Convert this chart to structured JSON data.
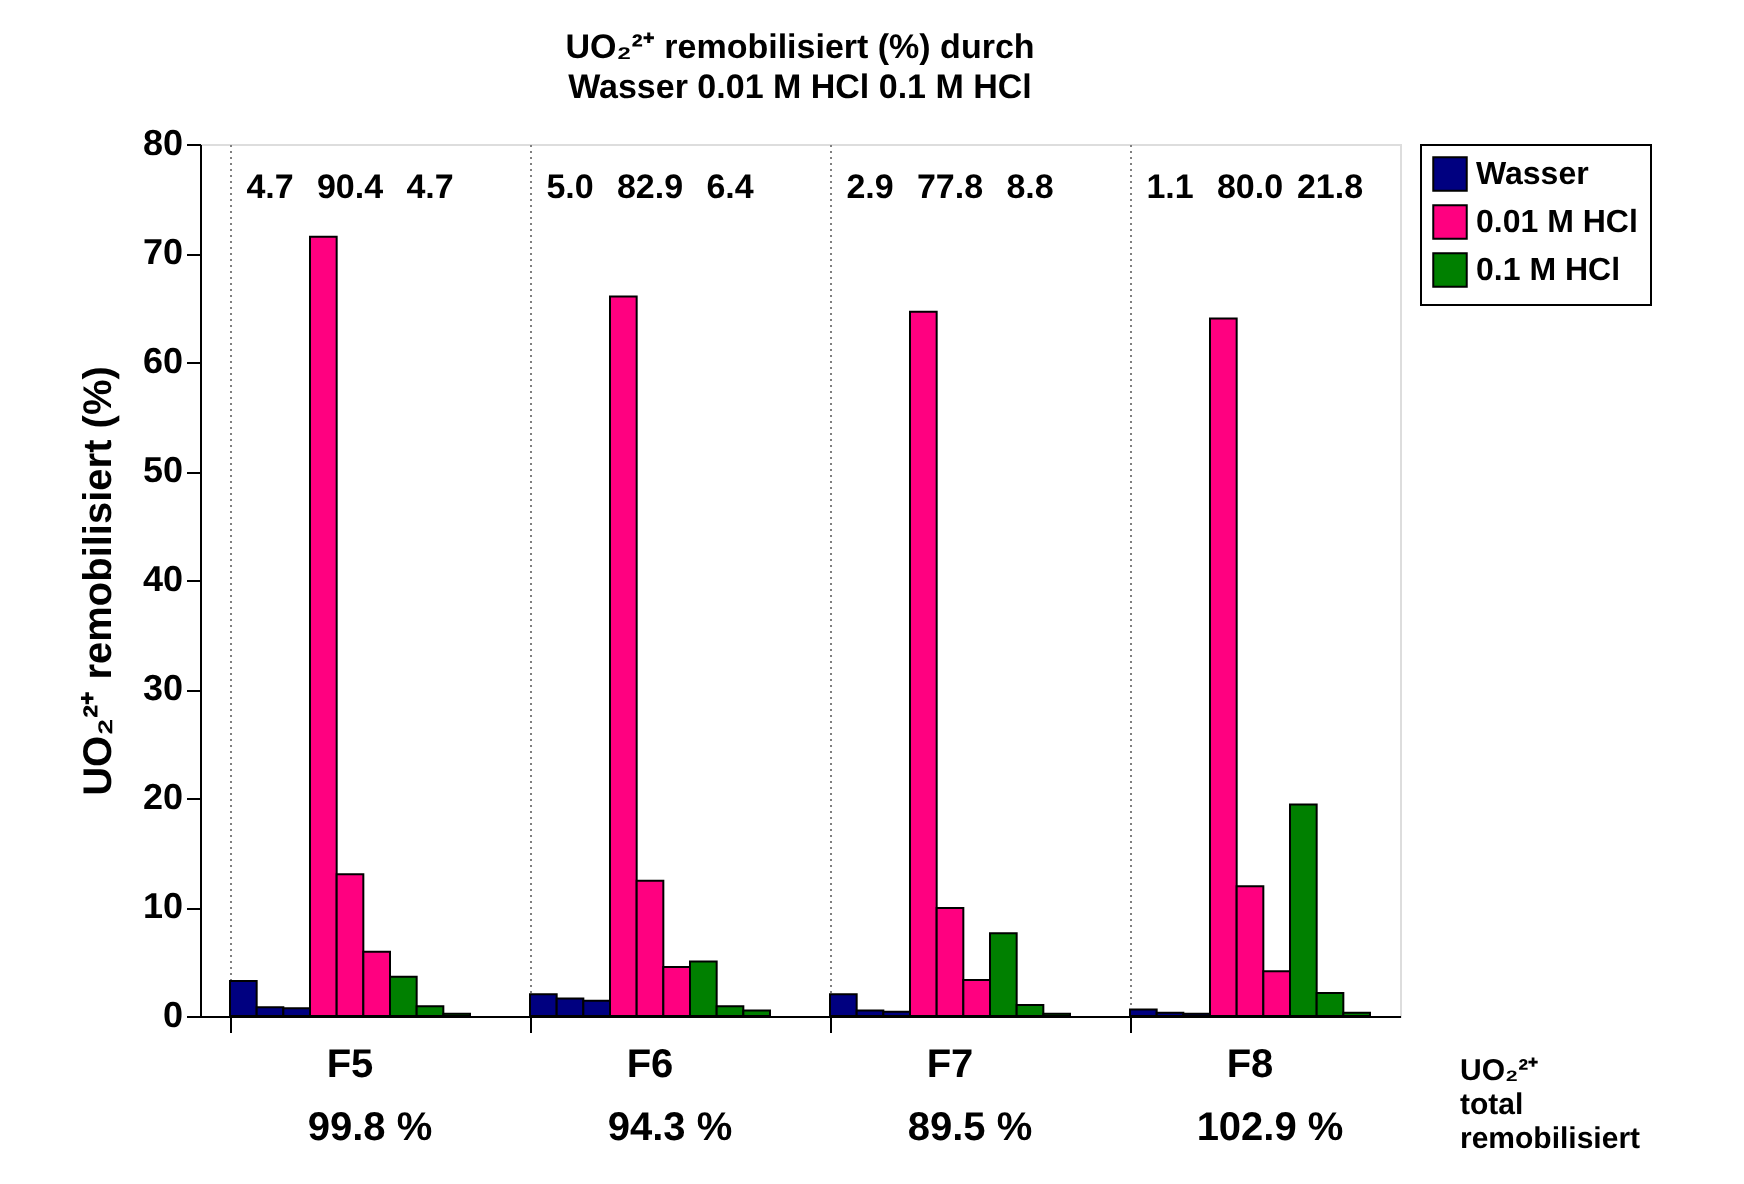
{
  "chart_data": {
    "type": "bar",
    "title": "UO₂²⁺ remobilisiert (%) durch",
    "subtitle": "Wasser     0.01 M HCl     0.1 M HCl",
    "ylabel": "UO₂²⁺ remobilisiert (%)",
    "categories": [
      "F5",
      "F6",
      "F7",
      "F8"
    ],
    "series": [
      {
        "name": "Wasser",
        "color": "#000080",
        "values": [
          3.2,
          2.0,
          2.0,
          0.6
        ]
      },
      {
        "color": "#000080",
        "values": [
          0.8,
          1.6,
          0.5,
          0.3
        ]
      },
      {
        "color": "#000080",
        "values": [
          0.7,
          1.4,
          0.4,
          0.2
        ]
      },
      {
        "name": "0.01 M HCl",
        "color": "#ff0080",
        "values": [
          71.5,
          66.0,
          64.6,
          64.0
        ]
      },
      {
        "color": "#ff0080",
        "values": [
          13.0,
          12.4,
          9.9,
          11.9
        ]
      },
      {
        "color": "#ff0080",
        "values": [
          5.9,
          4.5,
          3.3,
          4.1
        ]
      },
      {
        "name": "0.1 M HCl",
        "color": "#008000",
        "values": [
          3.6,
          5.0,
          7.6,
          19.4
        ]
      },
      {
        "color": "#008000",
        "values": [
          0.9,
          0.9,
          1.0,
          2.1
        ]
      },
      {
        "color": "#008000",
        "values": [
          0.2,
          0.5,
          0.2,
          0.3
        ]
      }
    ],
    "ylim": [
      0,
      80
    ],
    "yticks": [
      0,
      10,
      20,
      30,
      40,
      50,
      60,
      70,
      80
    ],
    "annotations": [
      "4.7",
      "90.4",
      "4.7",
      "5.0",
      "82.9",
      "6.4",
      "2.9",
      "77.8",
      "8.8",
      "1.1",
      "80.0",
      "21.8",
      "99.8 %",
      "94.3 %",
      "89.5 %",
      "102.9 %",
      "UO₂²⁺ total remobilisiert"
    ],
    "grid": "x",
    "legend": "right"
  }
}
